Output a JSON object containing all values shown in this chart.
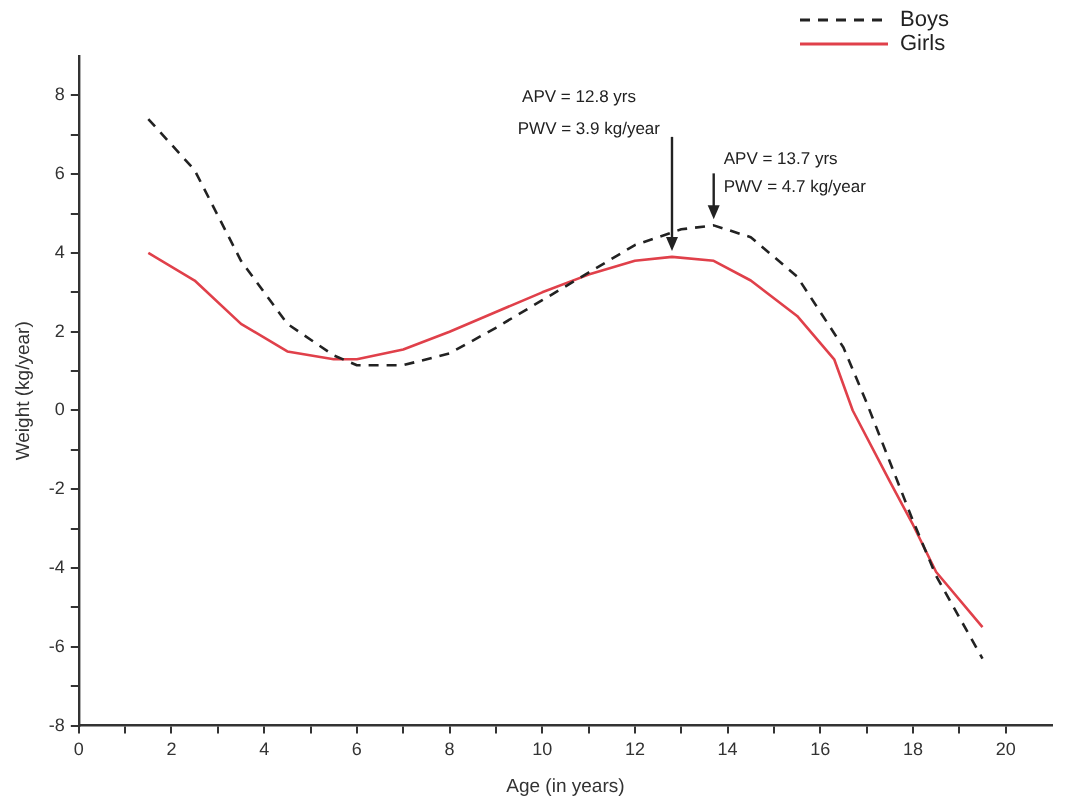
{
  "chart_data": {
    "type": "line",
    "xlabel": "Age (in years)",
    "ylabel": "Weight (kg/year)",
    "xlim": [
      0,
      21
    ],
    "ylim": [
      -8,
      9
    ],
    "xticks": [
      0,
      {
        "value": 1,
        "label": null
      },
      2,
      {
        "value": 3,
        "label": null
      },
      4,
      {
        "value": 5,
        "label": null
      },
      6,
      {
        "value": 7,
        "label": null
      },
      8,
      {
        "value": 9,
        "label": null
      },
      10,
      {
        "value": 11,
        "label": null
      },
      12,
      {
        "value": 13,
        "label": null
      },
      14,
      {
        "value": 15,
        "label": null
      },
      16,
      {
        "value": 17,
        "label": null
      },
      18,
      {
        "value": 19,
        "label": null
      },
      20
    ],
    "yticks": [
      -8,
      {
        "value": -7,
        "label": null
      },
      -6,
      {
        "value": -5,
        "label": null
      },
      -4,
      {
        "value": -3,
        "label": null
      },
      -2,
      {
        "value": -1,
        "label": null
      },
      0,
      {
        "value": 1,
        "label": null
      },
      2,
      {
        "value": 3,
        "label": null
      },
      4,
      {
        "value": 5,
        "label": null
      },
      6,
      {
        "value": 7,
        "label": null
      },
      8
    ],
    "grid": false,
    "legend": "top right",
    "marker": "none",
    "series": [
      {
        "name": "Boys",
        "color": "#222222",
        "line_style": "dashed",
        "x": [
          1.5,
          2.5,
          3.5,
          4.5,
          5.5,
          6,
          7,
          8,
          9,
          10,
          11,
          12,
          13,
          13.7,
          14.5,
          15.5,
          16.5,
          17,
          17.5,
          18,
          18.5,
          19.5
        ],
        "values": [
          7.4,
          6.1,
          3.8,
          2.2,
          1.4,
          1.15,
          1.15,
          1.45,
          2.1,
          2.8,
          3.5,
          4.2,
          4.6,
          4.7,
          4.4,
          3.4,
          1.6,
          0.2,
          -1.3,
          -2.8,
          -4.2,
          -6.3
        ]
      },
      {
        "name": "Girls",
        "color": "#e0404a",
        "line_style": "solid",
        "x": [
          1.5,
          2.5,
          3.5,
          4.5,
          5.5,
          6,
          7,
          8,
          9,
          10,
          11,
          12,
          12.8,
          13.7,
          14.5,
          15.5,
          16.3,
          16.7,
          17.5,
          18,
          18.5,
          19.5
        ],
        "values": [
          4.0,
          3.3,
          2.2,
          1.5,
          1.3,
          1.3,
          1.55,
          2.0,
          2.5,
          3.0,
          3.45,
          3.8,
          3.9,
          3.8,
          3.3,
          2.4,
          1.3,
          0,
          -1.8,
          -2.9,
          -4.1,
          -5.5
        ]
      }
    ],
    "annotations": [
      {
        "text": "APV = 12.8 yrs\nPWV = 3.9 kg/year",
        "x": 12.8,
        "y": 3.9
      },
      {
        "text": "APV = 13.7 yrs\nPWV = 4.7 kg/year",
        "x": 13.7,
        "y": 4.7
      }
    ]
  }
}
